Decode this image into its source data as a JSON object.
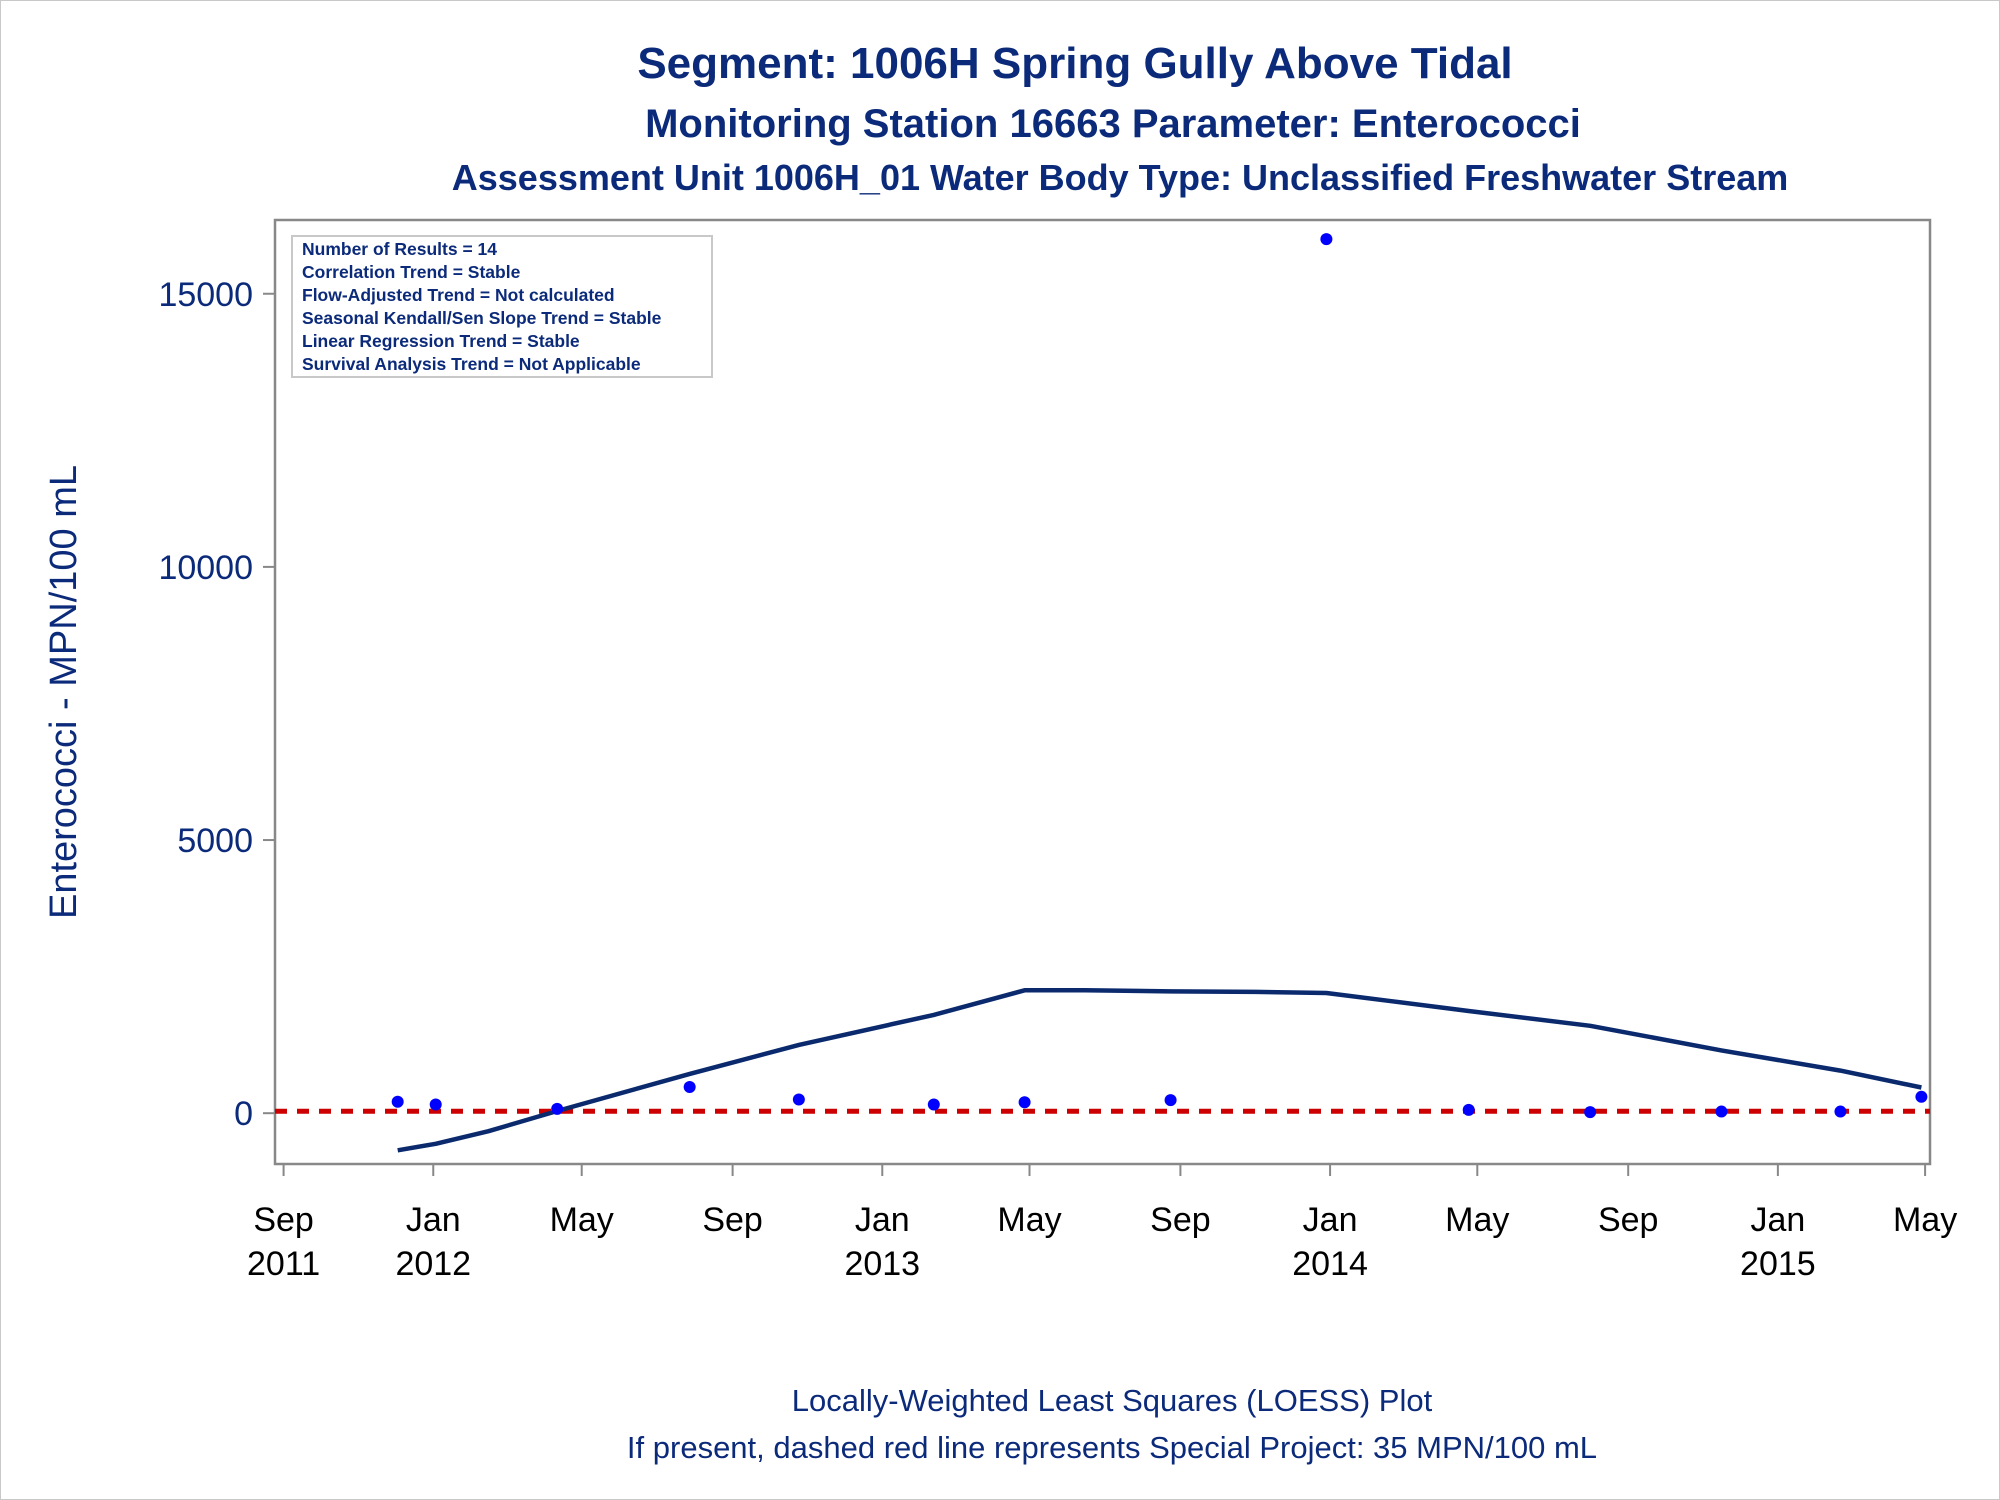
{
  "titles": {
    "line1": "Segment: 1006H  Spring Gully Above Tidal",
    "line2": "Monitoring Station 16663 Parameter: Enterococci",
    "line3": "Assessment Unit 1006H_01   Water Body Type: Unclassified Freshwater Stream"
  },
  "stats_box": [
    "Number of Results = 14",
    "Correlation Trend = Stable",
    "Flow-Adjusted Trend = Not calculated",
    "Seasonal Kendall/Sen Slope Trend = Stable",
    "Linear Regression Trend = Stable",
    "Survival Analysis Trend = Not Applicable"
  ],
  "footnotes": {
    "line1": "Locally-Weighted Least Squares (LOESS) Plot",
    "line2": "If present, dashed red line represents Special Project: 35 MPN/100 mL"
  },
  "colors": {
    "title": "#0b2a7a",
    "points": "#0000ff",
    "loess": "#0b2a6e",
    "reference": "#cc0000",
    "axis": "#888888"
  },
  "chart_data": {
    "type": "scatter",
    "xlabel": "",
    "ylabel": "Enterococci - MPN/100 mL",
    "xlim": [
      "2011-08-25",
      "2015-05-05"
    ],
    "ylim": [
      -930,
      16350
    ],
    "x_ticks": [
      {
        "date": "2011-09-01",
        "line1": "Sep",
        "line2": "2011"
      },
      {
        "date": "2012-01-01",
        "line1": "Jan",
        "line2": "2012"
      },
      {
        "date": "2012-05-01",
        "line1": "May",
        "line2": ""
      },
      {
        "date": "2012-09-01",
        "line1": "Sep",
        "line2": ""
      },
      {
        "date": "2013-01-01",
        "line1": "Jan",
        "line2": "2013"
      },
      {
        "date": "2013-05-01",
        "line1": "May",
        "line2": ""
      },
      {
        "date": "2013-09-01",
        "line1": "Sep",
        "line2": ""
      },
      {
        "date": "2014-01-01",
        "line1": "Jan",
        "line2": "2014"
      },
      {
        "date": "2014-05-01",
        "line1": "May",
        "line2": ""
      },
      {
        "date": "2014-09-01",
        "line1": "Sep",
        "line2": ""
      },
      {
        "date": "2015-01-01",
        "line1": "Jan",
        "line2": "2015"
      },
      {
        "date": "2015-05-01",
        "line1": "May",
        "line2": ""
      }
    ],
    "y_ticks": [
      0,
      5000,
      10000,
      15000
    ],
    "points": [
      {
        "x": "2011-12-03",
        "y": 210
      },
      {
        "x": "2012-01-03",
        "y": 160
      },
      {
        "x": "2012-04-11",
        "y": 80
      },
      {
        "x": "2012-07-28",
        "y": 480
      },
      {
        "x": "2012-10-25",
        "y": 250
      },
      {
        "x": "2013-02-12",
        "y": 160
      },
      {
        "x": "2013-04-27",
        "y": 200
      },
      {
        "x": "2013-08-24",
        "y": 240
      },
      {
        "x": "2013-12-29",
        "y": 16000
      },
      {
        "x": "2014-04-24",
        "y": 60
      },
      {
        "x": "2014-08-01",
        "y": 20
      },
      {
        "x": "2014-11-16",
        "y": 30
      },
      {
        "x": "2015-02-21",
        "y": 30
      },
      {
        "x": "2015-04-28",
        "y": 300
      }
    ],
    "loess": [
      {
        "x": "2011-12-03",
        "y": -680
      },
      {
        "x": "2012-01-03",
        "y": -560
      },
      {
        "x": "2012-02-15",
        "y": -330
      },
      {
        "x": "2012-04-11",
        "y": 40
      },
      {
        "x": "2012-07-28",
        "y": 720
      },
      {
        "x": "2012-10-25",
        "y": 1250
      },
      {
        "x": "2013-02-12",
        "y": 1800
      },
      {
        "x": "2013-04-27",
        "y": 2250
      },
      {
        "x": "2013-06-15",
        "y": 2250
      },
      {
        "x": "2013-08-24",
        "y": 2230
      },
      {
        "x": "2013-11-01",
        "y": 2220
      },
      {
        "x": "2013-12-29",
        "y": 2200
      },
      {
        "x": "2014-02-20",
        "y": 2050
      },
      {
        "x": "2014-04-24",
        "y": 1870
      },
      {
        "x": "2014-08-01",
        "y": 1600
      },
      {
        "x": "2014-11-16",
        "y": 1150
      },
      {
        "x": "2015-02-21",
        "y": 780
      },
      {
        "x": "2015-04-28",
        "y": 470
      }
    ],
    "reference_line": {
      "y": 35,
      "style": "dashed"
    },
    "grid": false,
    "legend": "top-left"
  }
}
